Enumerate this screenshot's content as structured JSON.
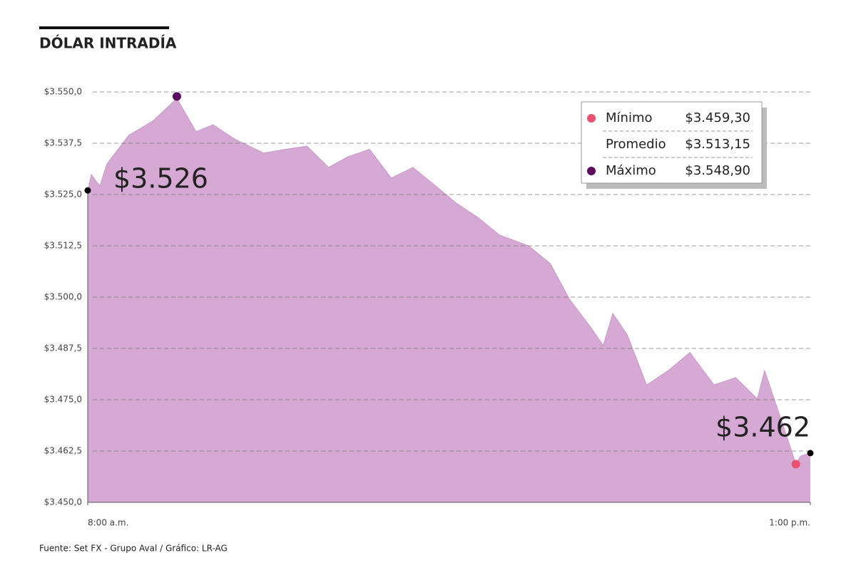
{
  "chart_data": {
    "type": "area",
    "title": "DÓLAR INTRADÍA",
    "source": "Fuente: Set FX - Grupo Aval / Gráfico: LR-AG",
    "x": [
      0,
      1.5,
      5,
      8,
      17,
      27,
      37,
      45,
      52,
      61,
      73,
      82,
      91,
      100,
      108,
      117,
      126,
      135,
      144,
      153,
      162,
      171,
      183,
      192,
      200,
      209,
      214,
      218,
      224,
      232,
      241,
      250,
      260,
      269,
      278,
      281,
      287,
      294,
      296,
      300
    ],
    "series": [
      {
        "name": "Dólar",
        "color": "#d5a9d4",
        "values": [
          3525.9,
          3529.9,
          3527.0,
          3532.5,
          3539.4,
          3542.9,
          3548.4,
          3540.3,
          3542.0,
          3538.5,
          3535.1,
          3536.0,
          3536.8,
          3531.6,
          3534.2,
          3536.0,
          3529.0,
          3531.6,
          3527.3,
          3522.9,
          3519.4,
          3515.1,
          3512.5,
          3508.2,
          3499.5,
          3492.5,
          3488.2,
          3496.0,
          3490.8,
          3478.6,
          3482.1,
          3486.5,
          3478.6,
          3480.4,
          3475.2,
          3482.1,
          3471.7,
          3459.3,
          3461.3,
          3462.0
        ]
      }
    ],
    "xlim": [
      0,
      300
    ],
    "xticks": [
      {
        "value": 0,
        "label": "8:00 a.m."
      },
      {
        "value": 300,
        "label": "1:00 p.m."
      }
    ],
    "ylim": [
      3450,
      3550
    ],
    "yticks": [
      {
        "value": 3450,
        "label": "$3.450,0"
      },
      {
        "value": 3462.5,
        "label": "$3.462,5"
      },
      {
        "value": 3475,
        "label": "$3.475,0"
      },
      {
        "value": 3487.5,
        "label": "$3.487,5"
      },
      {
        "value": 3500,
        "label": "$3.500,0"
      },
      {
        "value": 3512.5,
        "label": "$3.512,5"
      },
      {
        "value": 3525,
        "label": "$3.525,0"
      },
      {
        "value": 3537.5,
        "label": "$3.537,5"
      },
      {
        "value": 3550,
        "label": "$3.550,0"
      }
    ],
    "grid": true,
    "annotations": [
      {
        "text": "$3.526",
        "x": 0,
        "value": 3526
      },
      {
        "text": "$3.462",
        "x": 300,
        "value": 3462
      }
    ],
    "legend": [
      {
        "name": "Mínimo",
        "label": "$3.459,30",
        "value": 3459.3,
        "x": 294,
        "color": "#e8526f"
      },
      {
        "name": "Promedio",
        "label": "$3.513,15"
      },
      {
        "name": "Máximo",
        "label": "$3.548,90",
        "value": 3548.9,
        "x": 37,
        "color": "#5c0a5e"
      }
    ]
  }
}
